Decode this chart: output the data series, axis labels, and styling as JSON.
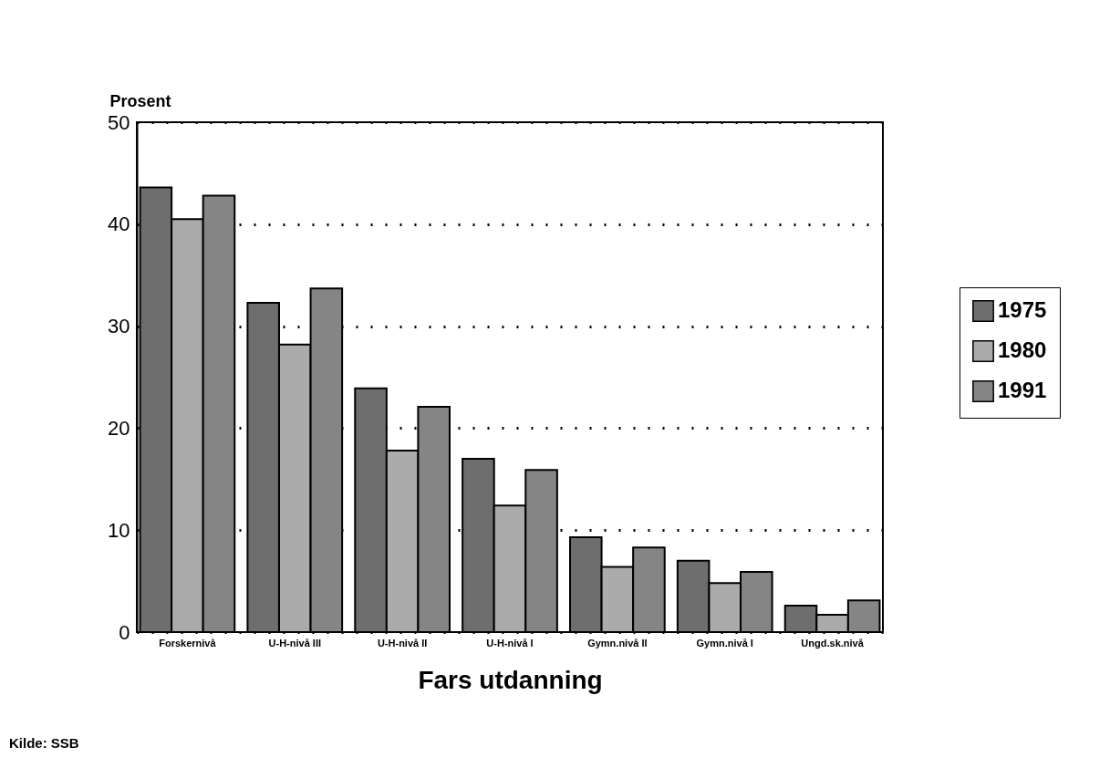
{
  "chart_data": {
    "type": "bar",
    "ylabel": "Prosent",
    "xlabel": "Fars utdanning",
    "categories": [
      "Forskernivå",
      "U-H-nivå III",
      "U-H-nivå II",
      "U-H-nivå I",
      "Gymn.nivå II",
      "Gymn.nivå I",
      "Ungd.sk.nivå"
    ],
    "series": [
      {
        "name": "1975",
        "color": "#6e6e6e",
        "values": [
          43.6,
          32.3,
          23.9,
          17.0,
          9.3,
          7.0,
          2.6
        ]
      },
      {
        "name": "1980",
        "color": "#ababab",
        "values": [
          40.5,
          28.2,
          17.8,
          12.4,
          6.4,
          4.8,
          1.7
        ]
      },
      {
        "name": "1991",
        "color": "#858585",
        "values": [
          42.8,
          33.7,
          22.1,
          15.9,
          8.3,
          5.9,
          3.1
        ]
      }
    ],
    "ylim": [
      0,
      50
    ],
    "yticks": [
      0,
      10,
      20,
      30,
      40,
      50
    ],
    "grid": "y",
    "legend": "right",
    "annotations": [
      "Kilde: SSB"
    ]
  }
}
